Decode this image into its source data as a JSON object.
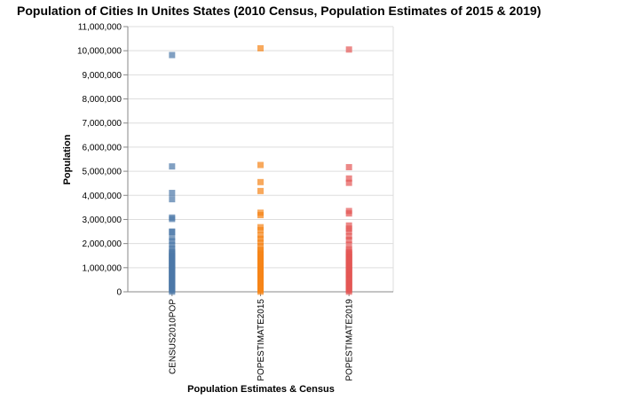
{
  "chart_data": {
    "type": "scatter",
    "title": "Population of Cities In Unites States (2010 Census, Population Estimates of 2015 & 2019)",
    "xlabel": "Population Estimates & Census",
    "ylabel": "Population",
    "ylim": [
      0,
      11000000
    ],
    "yticks": [
      0,
      1000000,
      2000000,
      3000000,
      4000000,
      5000000,
      6000000,
      7000000,
      8000000,
      9000000,
      10000000,
      11000000
    ],
    "ytick_labels": [
      "0",
      "1,000,000",
      "2,000,000",
      "3,000,000",
      "4,000,000",
      "5,000,000",
      "6,000,000",
      "7,000,000",
      "8,000,000",
      "9,000,000",
      "10,000,000",
      "11,000,000"
    ],
    "grid": true,
    "categories": [
      "CENSUS2010POP",
      "POPESTIMATE2015",
      "POPESTIMATE2019"
    ],
    "colors": [
      "#4c78a8",
      "#f58518",
      "#e45756"
    ],
    "series": [
      {
        "category": "CENSUS2010POP",
        "values": [
          9820000,
          5200000,
          4100000,
          3840000,
          3080000,
          3020000,
          2500000,
          2480000,
          2250000,
          2100000,
          1950000,
          1800000
        ]
      },
      {
        "category": "POPESTIMATE2015",
        "values": [
          10100000,
          5260000,
          4550000,
          4180000,
          3280000,
          3180000,
          2680000,
          2560000,
          2350000,
          2200000,
          2050000,
          1900000,
          1750000
        ]
      },
      {
        "category": "POPESTIMATE2019",
        "values": [
          10050000,
          5170000,
          4700000,
          4520000,
          3350000,
          3250000,
          2750000,
          2620000,
          2500000,
          2300000,
          2150000,
          1950000,
          1750000
        ]
      }
    ],
    "dense_max": 1700000
  }
}
